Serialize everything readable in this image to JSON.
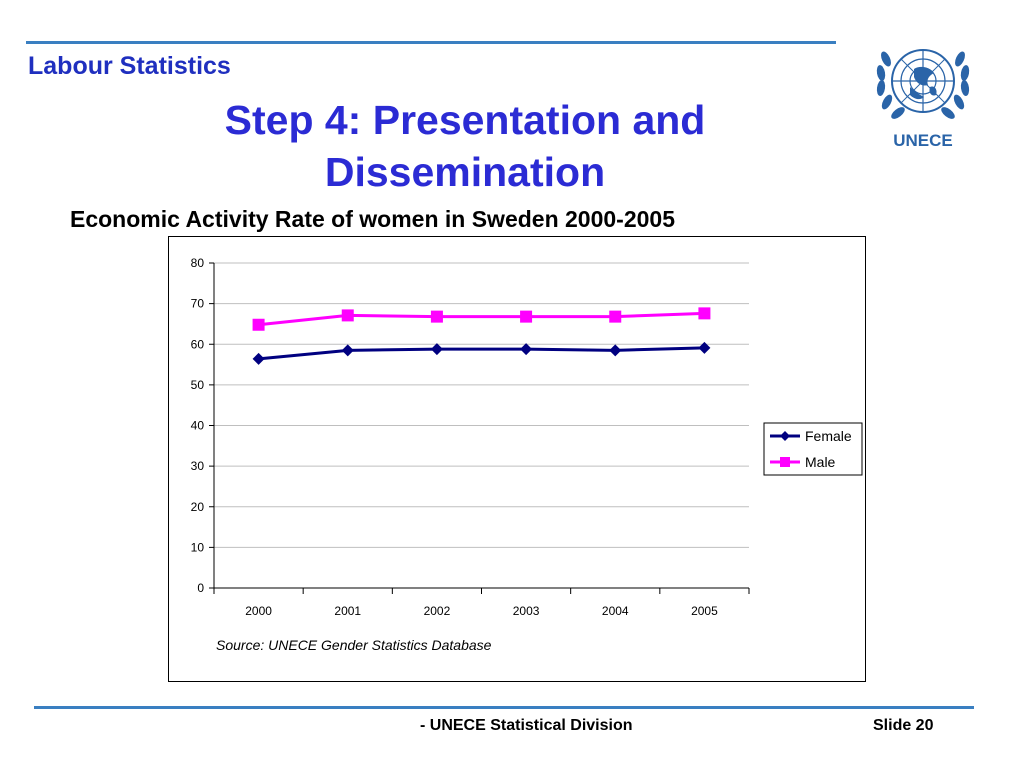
{
  "header": {
    "section_title": "Labour Statistics",
    "slide_title": "Step 4: Presentation and Dissemination"
  },
  "logo": {
    "text": "UNECE",
    "color": "#2a64a8"
  },
  "chart_heading": "Economic Activity Rate of women in Sweden 2000-2005",
  "chart_data": {
    "type": "line",
    "title": "",
    "xlabel": "",
    "ylabel": "",
    "categories": [
      "2000",
      "2001",
      "2002",
      "2003",
      "2004",
      "2005"
    ],
    "ylim": [
      0,
      80
    ],
    "yticks": [
      0,
      10,
      20,
      30,
      40,
      50,
      60,
      70,
      80
    ],
    "grid": true,
    "legend_position": "right",
    "series": [
      {
        "name": "Female",
        "color": "#000080",
        "marker": "diamond",
        "values": [
          56.4,
          58.5,
          58.8,
          58.8,
          58.5,
          59.1
        ]
      },
      {
        "name": "Male",
        "color": "#ff00ff",
        "marker": "square",
        "values": [
          64.8,
          67.1,
          66.8,
          66.8,
          66.8,
          67.6
        ]
      }
    ],
    "source_note": "Source: UNECE Gender Statistics Database"
  },
  "footer": {
    "division": "- UNECE Statistical Division",
    "slide_number": "Slide 20"
  },
  "colors": {
    "accent_rule": "#3a7fc1",
    "title_blue": "#2b2bd4"
  }
}
